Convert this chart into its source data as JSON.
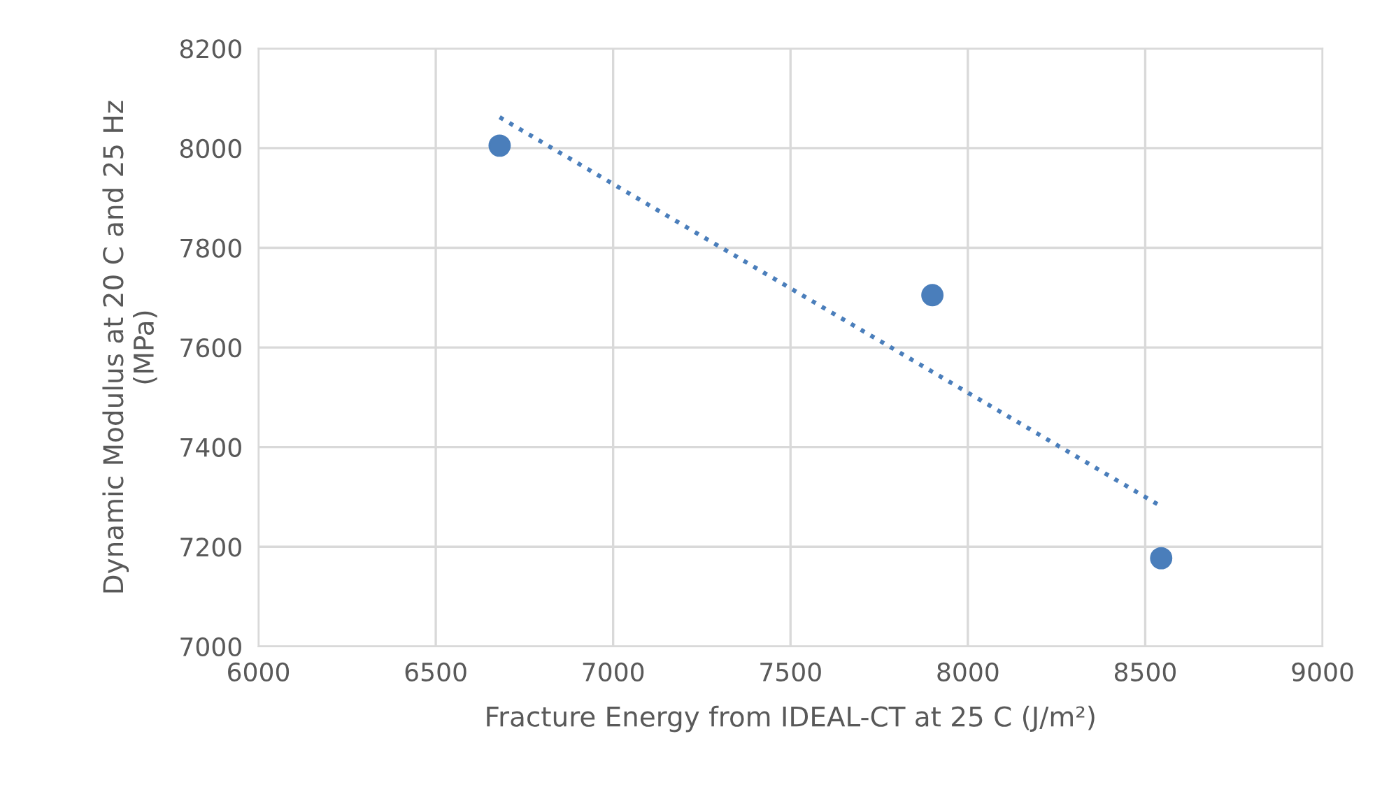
{
  "chart_data": {
    "type": "scatter",
    "xlabel": "Fracture Energy from IDEAL-CT at 25 C (J/m²)",
    "ylabel": "Dynamic Modulus at 20 C and 25 Hz\n(MPa)",
    "series": [
      {
        "type": "scatter",
        "color": "#4a7ebb",
        "x": [
          6680,
          7900,
          8545
        ],
        "values": [
          8005,
          7705,
          7177
        ],
        "marker": "circle"
      },
      {
        "type": "line",
        "color": "#4a7ebb",
        "x": [
          6680,
          8545
        ],
        "values": [
          8062,
          7281
        ],
        "line_style": "dotted",
        "marker": "none"
      }
    ],
    "xlim": [
      6000,
      9000
    ],
    "xticks": [
      6000,
      6500,
      7000,
      7500,
      8000,
      8500,
      9000
    ],
    "ylim": [
      7000,
      8200
    ],
    "yticks": [
      7000,
      7200,
      7400,
      7600,
      7800,
      8000,
      8200
    ],
    "grid": true
  }
}
